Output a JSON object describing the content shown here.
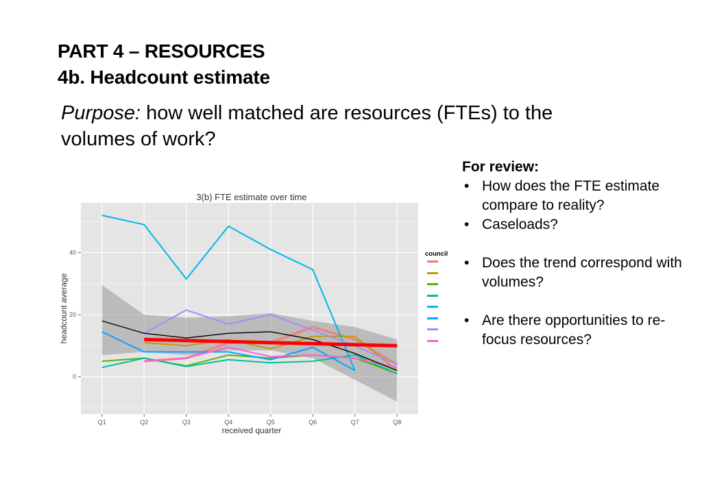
{
  "header": {
    "title_line1": "PART 4 – RESOURCES",
    "title_line2": "4b. Headcount estimate"
  },
  "purpose": {
    "label": "Purpose:",
    "text": " how well matched are resources (FTEs) to the volumes of work?"
  },
  "review": {
    "heading": "For review:",
    "items": [
      "How does the FTE estimate compare to reality?",
      "Caseloads?",
      "Does the trend correspond with volumes?",
      "Are there opportunities to re-focus resources?"
    ]
  },
  "chart_data": {
    "type": "line",
    "title": "3(b) FTE estimate over time",
    "xlabel": "received quarter",
    "ylabel": "headcount average",
    "categories": [
      "Q1",
      "Q2",
      "Q3",
      "Q4",
      "Q5",
      "Q6",
      "Q7",
      "Q8"
    ],
    "ylim": [
      -12,
      56
    ],
    "yticks": [
      0,
      20,
      40
    ],
    "grid": true,
    "legend_position": "right",
    "legend_title": "council",
    "series": [
      {
        "color": "#f8766d",
        "values": [
          null,
          5,
          6,
          11,
          11,
          16,
          12,
          4
        ]
      },
      {
        "color": "#c49a00",
        "values": [
          null,
          11,
          10,
          12,
          9,
          13,
          13,
          2
        ]
      },
      {
        "color": "#53b400",
        "values": [
          5,
          6,
          3.5,
          7,
          6,
          7,
          6,
          1
        ]
      },
      {
        "color": "#00c094",
        "values": [
          3,
          6,
          3.3,
          5.5,
          4.5,
          5,
          7,
          1
        ]
      },
      {
        "color": "#00b6eb",
        "values": [
          52,
          49,
          31.5,
          48.5,
          41,
          34.5,
          2,
          null
        ]
      },
      {
        "color": "#06a4ff",
        "values": [
          14.5,
          8,
          8,
          8,
          5.5,
          9.5,
          2,
          null
        ]
      },
      {
        "color": "#a58aff",
        "values": [
          null,
          14,
          21.5,
          17,
          20,
          15,
          10,
          4
        ]
      },
      {
        "color": "#fb61d7",
        "values": [
          null,
          5,
          6,
          9.5,
          6.5,
          7,
          6,
          3
        ]
      }
    ],
    "trend": {
      "color": "#000000",
      "values": [
        18,
        14,
        12.5,
        14,
        14.5,
        12,
        7.5,
        2
      ]
    },
    "trend_band": {
      "lower": [
        7,
        8,
        7,
        8.5,
        8.5,
        6,
        -1,
        -8
      ],
      "upper": [
        29.5,
        20,
        19,
        19.5,
        20.5,
        18,
        16,
        12
      ]
    },
    "linear_fit": {
      "color": "#ff0000",
      "x": [
        "Q2",
        "Q8"
      ],
      "y": [
        12,
        10
      ]
    }
  }
}
